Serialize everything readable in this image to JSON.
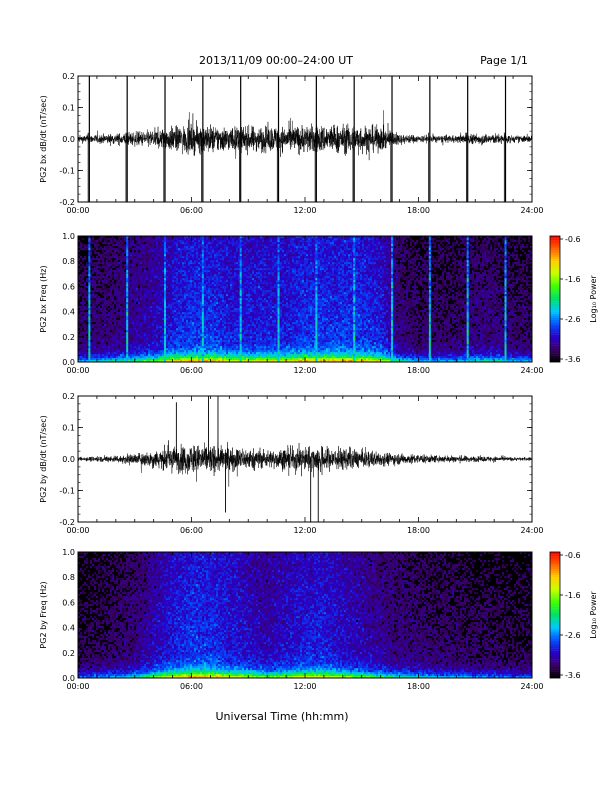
{
  "header": {
    "title": "2013/11/09  00:00–24:00 UT",
    "page": "Page 1/1"
  },
  "xlabel": "Universal Time (hh:mm)",
  "colorbar": {
    "label": "Log₁₀ Power",
    "ticks": [
      "-0.6",
      "-1.6",
      "-2.6",
      "-3.6"
    ],
    "range": [
      -3.6,
      -0.6
    ],
    "colormap": [
      "#000000",
      "#3a0068",
      "#2a00c8",
      "#0050ff",
      "#00c8ff",
      "#00e070",
      "#40ff00",
      "#c8ff00",
      "#ffd000",
      "#ff6000",
      "#ff0000"
    ]
  },
  "chart_data": [
    {
      "type": "line",
      "panel": "bx-waveform",
      "ylabel": "PG2 bx dB/dt (nT/sec)",
      "xlim": [
        0,
        24
      ],
      "ylim": [
        -0.2,
        0.2
      ],
      "xticks": [
        "00:00",
        "06:00",
        "12:00",
        "18:00",
        "24:00"
      ],
      "yticks": [
        "-0.2",
        "-0.1",
        "0.0",
        "0.1",
        "0.2"
      ],
      "spikes_hours": [
        0.6,
        2.6,
        4.6,
        6.6,
        8.6,
        10.6,
        12.6,
        14.6,
        16.6,
        18.6,
        20.6,
        22.6
      ],
      "envelope": {
        "hours": [
          0,
          2,
          3,
          4,
          5,
          6,
          7,
          8,
          9,
          10,
          11,
          12,
          13,
          14,
          15,
          16,
          17,
          18,
          19,
          20,
          21,
          22,
          23,
          24
        ],
        "amplitude": [
          0.02,
          0.03,
          0.04,
          0.05,
          0.07,
          0.08,
          0.08,
          0.07,
          0.07,
          0.07,
          0.07,
          0.08,
          0.08,
          0.08,
          0.08,
          0.07,
          0.03,
          0.02,
          0.02,
          0.02,
          0.03,
          0.03,
          0.02,
          0.02
        ]
      }
    },
    {
      "type": "heatmap",
      "panel": "bx-spectrogram",
      "ylabel": "PG2 bx Freq (Hz)",
      "xlim": [
        0,
        24
      ],
      "ylim": [
        0,
        1.0
      ],
      "xticks": [
        "00:00",
        "06:00",
        "12:00",
        "18:00",
        "24:00"
      ],
      "yticks": [
        "0.0",
        "0.2",
        "0.4",
        "0.6",
        "0.8",
        "1.0"
      ],
      "zlim": [
        -3.6,
        -0.6
      ],
      "broadband_lines_hours": [
        0.6,
        2.6,
        4.6,
        6.6,
        8.6,
        10.6,
        12.6,
        14.6,
        16.6,
        18.6,
        20.6,
        22.6
      ]
    },
    {
      "type": "line",
      "panel": "by-waveform",
      "ylabel": "PG2 by dB/dt (nT/sec)",
      "xlim": [
        0,
        24
      ],
      "ylim": [
        -0.2,
        0.2
      ],
      "xticks": [
        "00:00",
        "06:00",
        "12:00",
        "18:00",
        "24:00"
      ],
      "yticks": [
        "-0.2",
        "-0.1",
        "0.0",
        "0.1",
        "0.2"
      ],
      "envelope": {
        "hours": [
          0,
          1,
          2,
          3,
          4,
          5,
          6,
          7,
          8,
          9,
          10,
          11,
          12,
          13,
          14,
          15,
          16,
          17,
          18,
          19,
          20,
          21,
          22,
          23,
          24
        ],
        "amplitude": [
          0.01,
          0.015,
          0.02,
          0.03,
          0.05,
          0.07,
          0.08,
          0.08,
          0.07,
          0.06,
          0.05,
          0.06,
          0.07,
          0.07,
          0.06,
          0.05,
          0.04,
          0.03,
          0.025,
          0.02,
          0.02,
          0.015,
          0.015,
          0.01,
          0.01
        ]
      },
      "peaks": [
        {
          "hour": 5.2,
          "value": 0.18
        },
        {
          "hour": 6.9,
          "value": 0.2
        },
        {
          "hour": 7.4,
          "value": 0.2
        },
        {
          "hour": 7.8,
          "value": -0.17
        },
        {
          "hour": 12.3,
          "value": -0.2
        },
        {
          "hour": 12.7,
          "value": -0.2
        }
      ]
    },
    {
      "type": "heatmap",
      "panel": "by-spectrogram",
      "ylabel": "PG2 by Freq (Hz)",
      "xlim": [
        0,
        24
      ],
      "ylim": [
        0,
        1.0
      ],
      "xticks": [
        "00:00",
        "06:00",
        "12:00",
        "18:00",
        "24:00"
      ],
      "yticks": [
        "0.0",
        "0.2",
        "0.4",
        "0.6",
        "0.8",
        "1.0"
      ],
      "zlim": [
        -3.6,
        -0.6
      ]
    }
  ]
}
